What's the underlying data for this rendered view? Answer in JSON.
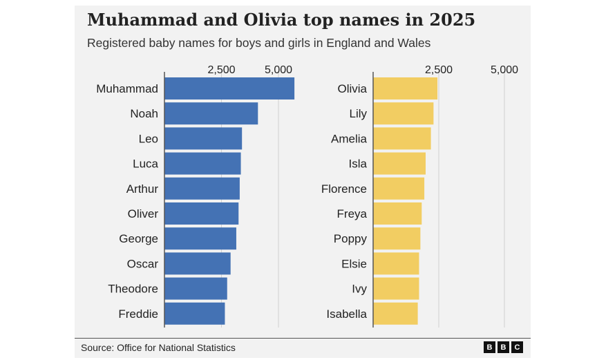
{
  "title": "Muhammad and Olivia top names in 2025",
  "subtitle": "Registered baby names for boys and girls in England and Wales",
  "source": "Source: Office for National Statistics",
  "logo_text": "BBC",
  "logo_letters": [
    "B",
    "B",
    "C"
  ],
  "colors": {
    "boys": "#4472b4",
    "girls": "#f2cd62",
    "grid": "#d0d0d0",
    "axis": "#555555",
    "background": "#f2f2f2"
  },
  "chart_data": [
    {
      "type": "bar",
      "orientation": "horizontal",
      "series_group": "boys",
      "categories": [
        "Muhammad",
        "Noah",
        "Leo",
        "Luca",
        "Arthur",
        "Oliver",
        "George",
        "Oscar",
        "Theodore",
        "Freddie"
      ],
      "values": [
        5700,
        4100,
        3400,
        3350,
        3300,
        3250,
        3150,
        2900,
        2750,
        2650
      ],
      "ticks": [
        2500,
        5000
      ],
      "tick_labels": [
        "2,500",
        "5,000"
      ],
      "xlim": [
        0,
        6000
      ],
      "grid": true
    },
    {
      "type": "bar",
      "orientation": "horizontal",
      "series_group": "girls",
      "categories": [
        "Olivia",
        "Lily",
        "Amelia",
        "Isla",
        "Florence",
        "Freya",
        "Poppy",
        "Elsie",
        "Ivy",
        "Isabella"
      ],
      "values": [
        2450,
        2300,
        2200,
        2000,
        1950,
        1850,
        1800,
        1750,
        1750,
        1700
      ],
      "ticks": [
        2500,
        5000
      ],
      "tick_labels": [
        "2,500",
        "5,000"
      ],
      "xlim": [
        0,
        6000
      ],
      "grid": true
    }
  ]
}
